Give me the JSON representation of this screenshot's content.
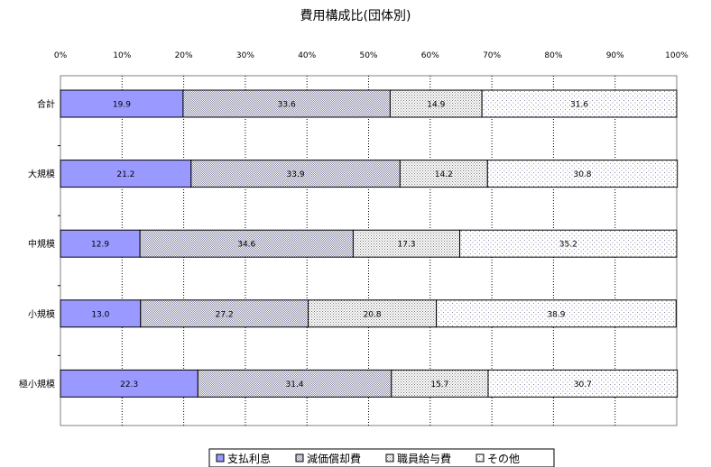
{
  "chart_data": {
    "type": "bar",
    "orientation": "horizontal",
    "stacked": "percent",
    "title": "費用構成比(団体別)",
    "xlabel": "",
    "ylabel": "",
    "xlim": [
      0,
      100
    ],
    "x_ticks": [
      "0%",
      "10%",
      "20%",
      "30%",
      "40%",
      "50%",
      "60%",
      "70%",
      "80%",
      "90%",
      "100%"
    ],
    "grid": "vertical-dotted",
    "legend_position": "bottom",
    "categories": [
      "合計",
      "大規模",
      "中規模",
      "小規模",
      "極小規模"
    ],
    "series": [
      {
        "name": "支払利息",
        "color": "#9999ff",
        "pattern": "solid",
        "values": [
          19.9,
          21.2,
          12.9,
          13.0,
          22.3
        ]
      },
      {
        "name": "減価償却費",
        "color": "#d8d8ea",
        "pattern": "dense-dots",
        "values": [
          33.6,
          33.9,
          34.6,
          27.2,
          31.4
        ]
      },
      {
        "name": "職員給与費",
        "color": "#e6e6e6",
        "pattern": "medium-dots",
        "values": [
          14.9,
          14.2,
          17.3,
          20.8,
          15.7
        ]
      },
      {
        "name": "その他",
        "color": "#f4f4f4",
        "pattern": "sparse-dots",
        "values": [
          31.6,
          30.8,
          35.2,
          38.9,
          30.7
        ]
      }
    ]
  }
}
